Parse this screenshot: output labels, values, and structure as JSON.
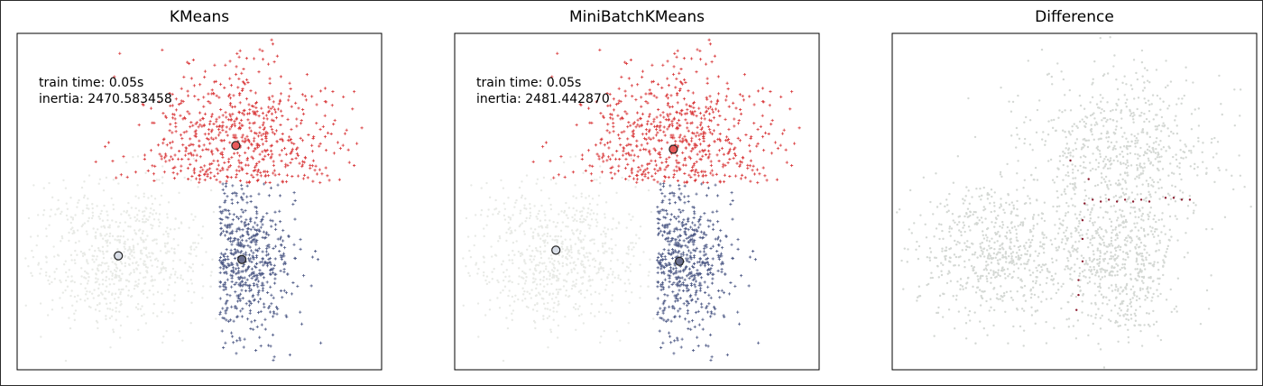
{
  "figure": {
    "background": "#ffffff"
  },
  "chart_data": [
    {
      "type": "scatter",
      "title": "KMeans",
      "annotation": {
        "train_time": "train time: 0.05s",
        "inertia": "inertia: 2470.583458"
      },
      "xlim": [
        -4.5,
        4.5
      ],
      "ylim": [
        -3.5,
        5.5
      ],
      "grid": false,
      "xticks": [],
      "yticks": [],
      "series": [
        {
          "color": "#e8eae6",
          "marker": "point",
          "center": [
            -2.0,
            -0.4
          ],
          "spread": [
            1.1,
            0.95
          ],
          "count": 700,
          "clip": "x<0.5"
        },
        {
          "color": "#4e5a86",
          "marker": "plus",
          "center": [
            0.8,
            -0.6
          ],
          "spread": [
            0.75,
            1.05
          ],
          "count": 550,
          "clip": "x>=0.5 & y<1.5"
        },
        {
          "color": "#d9383a",
          "marker": "plus",
          "center": [
            1.0,
            2.5
          ],
          "spread": [
            1.2,
            1.1
          ],
          "count": 650,
          "clip": "y>=1.5"
        }
      ],
      "centers": [
        {
          "x": 0.9,
          "y": 2.5,
          "color": "#e85a5a"
        },
        {
          "x": -2.0,
          "y": -0.45,
          "color": "#d8dde6"
        },
        {
          "x": 1.05,
          "y": -0.55,
          "color": "#6a6f8e"
        }
      ]
    },
    {
      "type": "scatter",
      "title": "MiniBatchKMeans",
      "annotation": {
        "train_time": "train time: 0.05s",
        "inertia": "inertia: 2481.442870"
      },
      "xlim": [
        -4.5,
        4.5
      ],
      "ylim": [
        -3.5,
        5.5
      ],
      "grid": false,
      "xticks": [],
      "yticks": [],
      "series": [
        {
          "color": "#e8eae6",
          "marker": "point",
          "center": [
            -2.0,
            -0.4
          ],
          "spread": [
            1.1,
            0.95
          ],
          "count": 700,
          "clip": "x<0.5"
        },
        {
          "color": "#4e5a86",
          "marker": "plus",
          "center": [
            0.8,
            -0.6
          ],
          "spread": [
            0.75,
            1.05
          ],
          "count": 550,
          "clip": "x>=0.5 & y<1.5"
        },
        {
          "color": "#d9383a",
          "marker": "plus",
          "center": [
            1.0,
            2.5
          ],
          "spread": [
            1.2,
            1.1
          ],
          "count": 650,
          "clip": "y>=1.5"
        }
      ],
      "centers": [
        {
          "x": 0.9,
          "y": 2.4,
          "color": "#e85a5a"
        },
        {
          "x": -2.0,
          "y": -0.3,
          "color": "#d8dde6"
        },
        {
          "x": 1.05,
          "y": -0.6,
          "color": "#6a6f8e"
        }
      ]
    },
    {
      "type": "scatter",
      "title": "Difference",
      "xlim": [
        -4.5,
        4.5
      ],
      "ylim": [
        -3.5,
        5.5
      ],
      "grid": false,
      "xticks": [],
      "yticks": [],
      "series": [
        {
          "color": "#d4d8d4",
          "marker": "point",
          "center": [
            -1.8,
            -0.4
          ],
          "spread": [
            1.1,
            0.95
          ],
          "count": 700
        },
        {
          "color": "#d4d8d4",
          "marker": "point",
          "center": [
            1.2,
            -0.6
          ],
          "spread": [
            0.75,
            1.05
          ],
          "count": 550
        },
        {
          "color": "#d4d8d4",
          "marker": "point",
          "center": [
            1.2,
            2.5
          ],
          "spread": [
            1.2,
            1.1
          ],
          "count": 650
        },
        {
          "color": "#8b1a2e",
          "marker": "point",
          "points": [
            [
              0.25,
              0.95
            ],
            [
              0.45,
              1.05
            ],
            [
              0.65,
              1.0
            ],
            [
              0.85,
              1.05
            ],
            [
              1.05,
              1.0
            ],
            [
              1.25,
              1.05
            ],
            [
              1.45,
              1.0
            ],
            [
              1.65,
              1.05
            ],
            [
              1.85,
              1.0
            ],
            [
              2.25,
              1.1
            ],
            [
              2.45,
              1.1
            ],
            [
              2.65,
              1.05
            ],
            [
              2.85,
              1.05
            ],
            [
              0.2,
              0.5
            ],
            [
              0.2,
              0.0
            ],
            [
              0.2,
              -0.6
            ],
            [
              0.1,
              -1.1
            ],
            [
              0.1,
              -1.5
            ],
            [
              0.05,
              -1.9
            ],
            [
              -0.1,
              2.1
            ],
            [
              0.35,
              1.6
            ]
          ]
        }
      ]
    }
  ]
}
